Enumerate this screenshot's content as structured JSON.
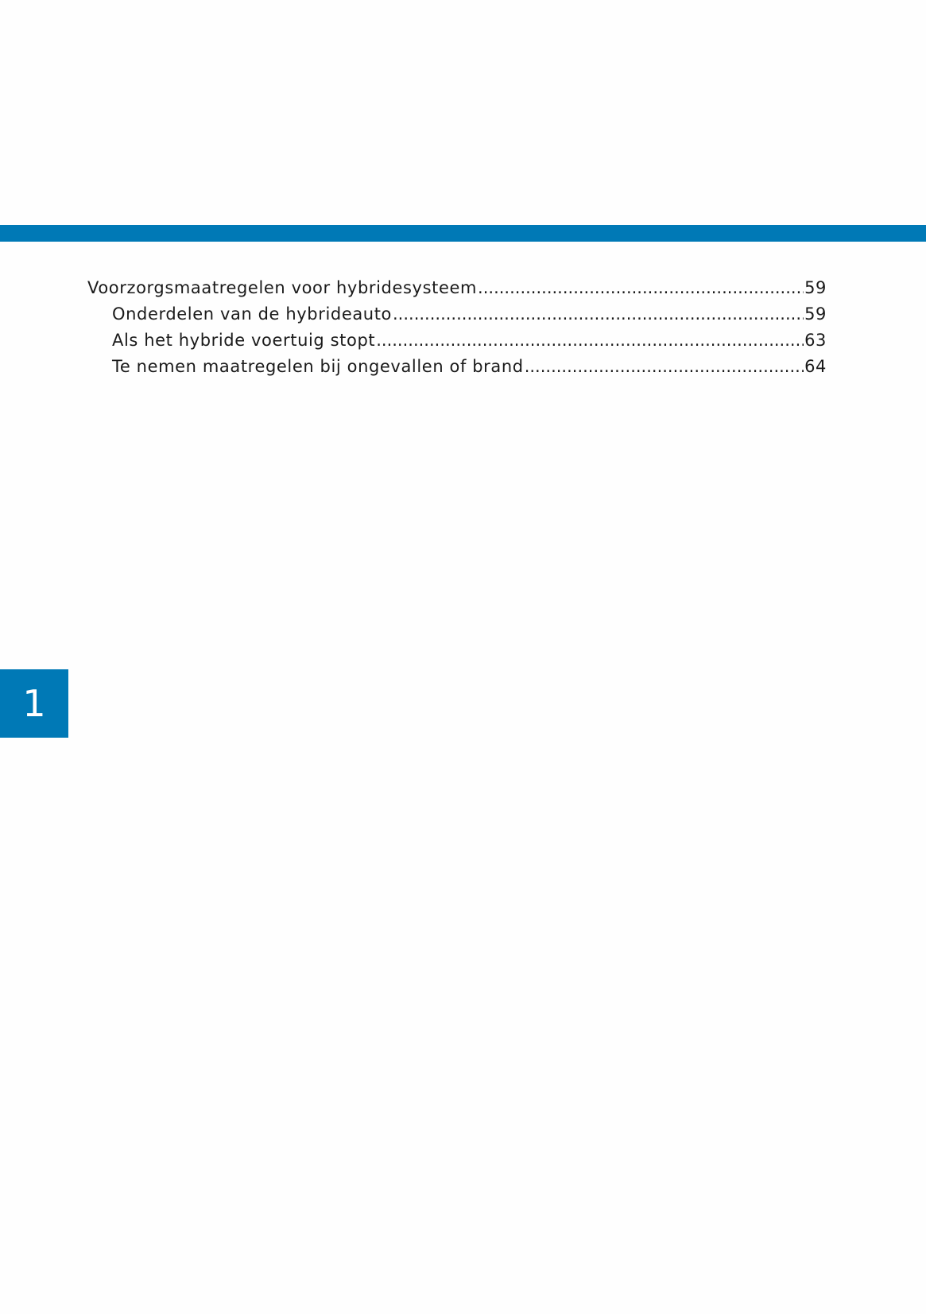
{
  "colors": {
    "accent": "#0079b6"
  },
  "toc": [
    {
      "title": "Voorzorgsmaatregelen voor hybridesysteem",
      "page": "59",
      "level": 1
    },
    {
      "title": "Onderdelen van de hybrideauto",
      "page": "59",
      "level": 2
    },
    {
      "title": "Als het hybride voertuig stopt",
      "page": "63",
      "level": 2
    },
    {
      "title": "Te nemen maatregelen bij ongevallen of brand",
      "page": "64",
      "level": 2
    }
  ],
  "chapter_tab": "1"
}
